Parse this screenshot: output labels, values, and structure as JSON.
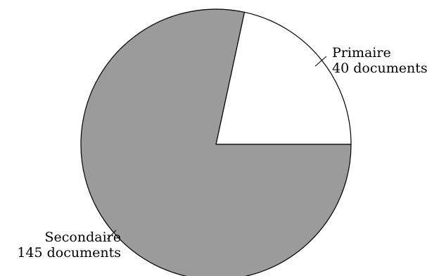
{
  "chart_data": {
    "type": "pie",
    "title": "",
    "slices": [
      {
        "label": "Primaire",
        "value_label": "40 documents",
        "value": 40,
        "color": "#ffffff"
      },
      {
        "label": "Secondaire",
        "value_label": "145 documents",
        "value": 145,
        "color": "#9b9b9b"
      }
    ],
    "start_angle_deg": 0,
    "direction": "counterclockwise",
    "legend": "none"
  }
}
